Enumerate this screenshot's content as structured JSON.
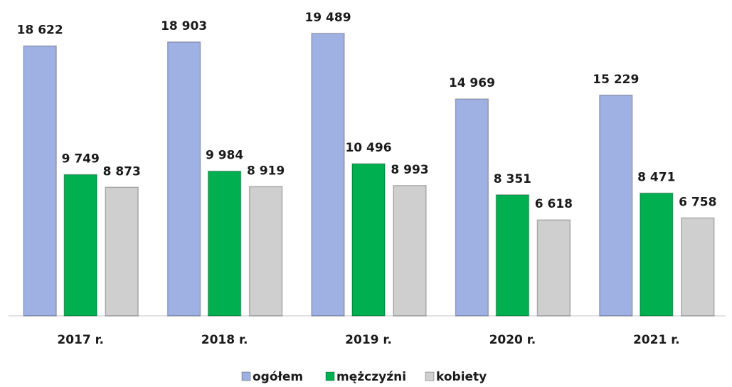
{
  "chart_data": {
    "type": "bar",
    "categories": [
      "2017 r.",
      "2018 r.",
      "2019 r.",
      "2020 r.",
      "2021 r."
    ],
    "series": [
      {
        "name": "ogółem",
        "color": "#9fb1e2",
        "values": [
          18622,
          18903,
          19489,
          14969,
          15229
        ],
        "value_labels": [
          "18 622",
          "18 903",
          "19 489",
          "14 969",
          "15 229"
        ]
      },
      {
        "name": "mężczyźni",
        "color": "#00b050",
        "values": [
          9749,
          9984,
          10496,
          8351,
          8471
        ],
        "value_labels": [
          "9 749",
          "9 984",
          "10 496",
          "8 351",
          "8 471"
        ]
      },
      {
        "name": "kobiety",
        "color": "#cfcfcf",
        "values": [
          8873,
          8919,
          8993,
          6618,
          6758
        ],
        "value_labels": [
          "8 873",
          "8 919",
          "8 993",
          "6 618",
          "6 758"
        ]
      }
    ],
    "legend": "bottom"
  }
}
